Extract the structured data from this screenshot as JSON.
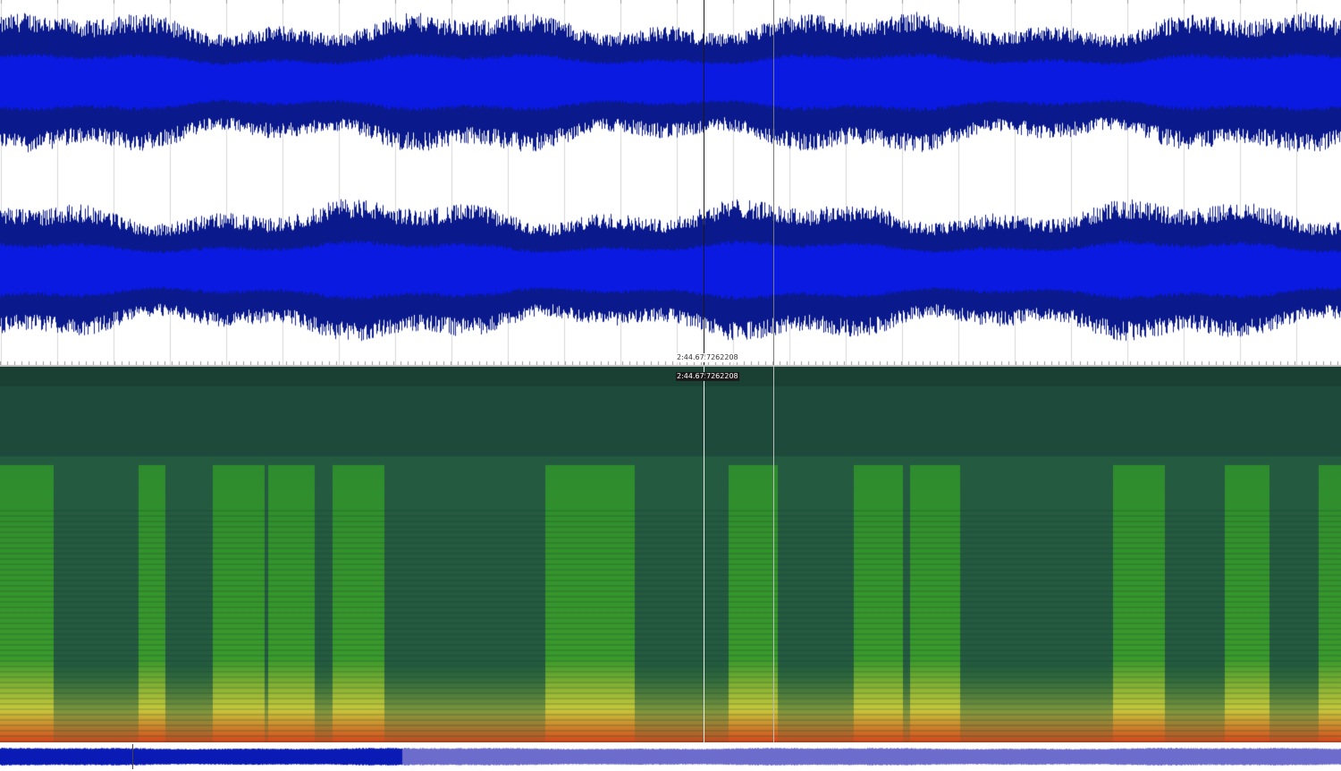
{
  "cursor": {
    "time_label": "2:44.675",
    "sample_label": "7262208"
  },
  "colors": {
    "waveform_dark": "#0a1a8c",
    "waveform_bright": "#0a1ae0",
    "spectrogram_base": "#1e4a3c",
    "spectrogram_green": "#2e8c2e",
    "spectrogram_yellow": "#c8c83c",
    "spectrogram_red": "#d2461e",
    "overview_played": "#0a1ab4",
    "overview_unplayed": "#6c6ccc"
  },
  "views": {
    "waveform": "stereo-waveform",
    "spectrogram": "spectral-frequency-display",
    "overview": "session-overview"
  }
}
